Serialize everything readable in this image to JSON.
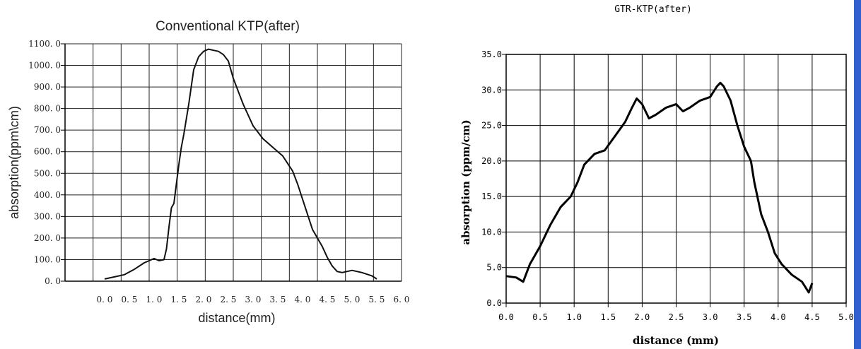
{
  "chart_data": [
    {
      "type": "line",
      "title": "Conventional  KTP(after)",
      "xlabel": "distance(mm)",
      "ylabel": "absorption(ppm\\cm)",
      "xlim": [
        0.0,
        6.0
      ],
      "ylim": [
        0.0,
        1100.0
      ],
      "x_ticks": [
        "0. 0",
        "0. 5",
        "1. 0",
        "1. 5",
        "2. 0",
        "2. 5",
        "3. 0",
        "3. 5",
        "4. 0",
        "4. 5",
        "5. 0",
        "5. 5",
        "6. 0"
      ],
      "y_ticks": [
        "0. 0",
        "100. 0",
        "200. 0",
        "300. 0",
        "400. 0",
        "500. 0",
        "600. 0",
        "700. 0",
        "800. 0",
        "900. 0",
        "1000. 0",
        "1100. 0"
      ],
      "grid": true,
      "series": [
        {
          "color": "#111111",
          "x": [
            0.0,
            0.2,
            0.4,
            0.6,
            0.8,
            1.0,
            1.05,
            1.1,
            1.2,
            1.25,
            1.3,
            1.35,
            1.4,
            1.45,
            1.5,
            1.55,
            1.6,
            1.7,
            1.8,
            1.9,
            2.0,
            2.1,
            2.2,
            2.3,
            2.4,
            2.5,
            2.6,
            2.7,
            2.8,
            3.0,
            3.2,
            3.4,
            3.6,
            3.8,
            3.9,
            4.0,
            4.1,
            4.2,
            4.3,
            4.4,
            4.5,
            4.6,
            4.7,
            4.8,
            5.0,
            5.2,
            5.4,
            5.5
          ],
          "y": [
            10,
            20,
            30,
            55,
            85,
            105,
            100,
            95,
            100,
            150,
            250,
            340,
            360,
            450,
            540,
            620,
            680,
            820,
            980,
            1040,
            1065,
            1075,
            1070,
            1065,
            1050,
            1020,
            940,
            880,
            820,
            720,
            660,
            620,
            580,
            510,
            450,
            380,
            310,
            240,
            200,
            160,
            110,
            70,
            45,
            40,
            50,
            40,
            25,
            10
          ]
        }
      ]
    },
    {
      "type": "line",
      "title": "GTR-KTP(after)",
      "xlabel": "distance (mm)",
      "ylabel": "absorption (ppm/cm)",
      "xlim": [
        0.0,
        5.0
      ],
      "ylim": [
        0.0,
        35.0
      ],
      "x_ticks": [
        "0.0",
        "0.5",
        "1.0",
        "1.5",
        "2.0",
        "2.5",
        "3.0",
        "3.5",
        "4.0",
        "4.5",
        "5.0"
      ],
      "y_ticks": [
        "0.0",
        "5.0",
        "10.0",
        "15.0",
        "20.0",
        "25.0",
        "30.0",
        "35.0"
      ],
      "grid": true,
      "series": [
        {
          "color": "#000000",
          "x": [
            0.0,
            0.15,
            0.25,
            0.35,
            0.5,
            0.65,
            0.8,
            0.95,
            1.05,
            1.15,
            1.3,
            1.45,
            1.6,
            1.75,
            1.85,
            1.92,
            2.0,
            2.1,
            2.2,
            2.35,
            2.5,
            2.6,
            2.7,
            2.85,
            3.0,
            3.1,
            3.15,
            3.2,
            3.3,
            3.4,
            3.5,
            3.6,
            3.65,
            3.75,
            3.85,
            3.95,
            4.05,
            4.2,
            4.35,
            4.45,
            4.5
          ],
          "y": [
            3.8,
            3.6,
            3.0,
            5.5,
            8.0,
            11.0,
            13.5,
            15.0,
            17.0,
            19.5,
            21.0,
            21.5,
            23.5,
            25.5,
            27.5,
            28.8,
            28.0,
            26.0,
            26.5,
            27.5,
            28.0,
            27.0,
            27.5,
            28.5,
            29.0,
            30.5,
            31.0,
            30.5,
            28.5,
            25.0,
            22.0,
            20.0,
            17.0,
            12.5,
            10.0,
            7.0,
            5.5,
            4.0,
            3.0,
            1.5,
            2.8
          ]
        }
      ]
    }
  ]
}
